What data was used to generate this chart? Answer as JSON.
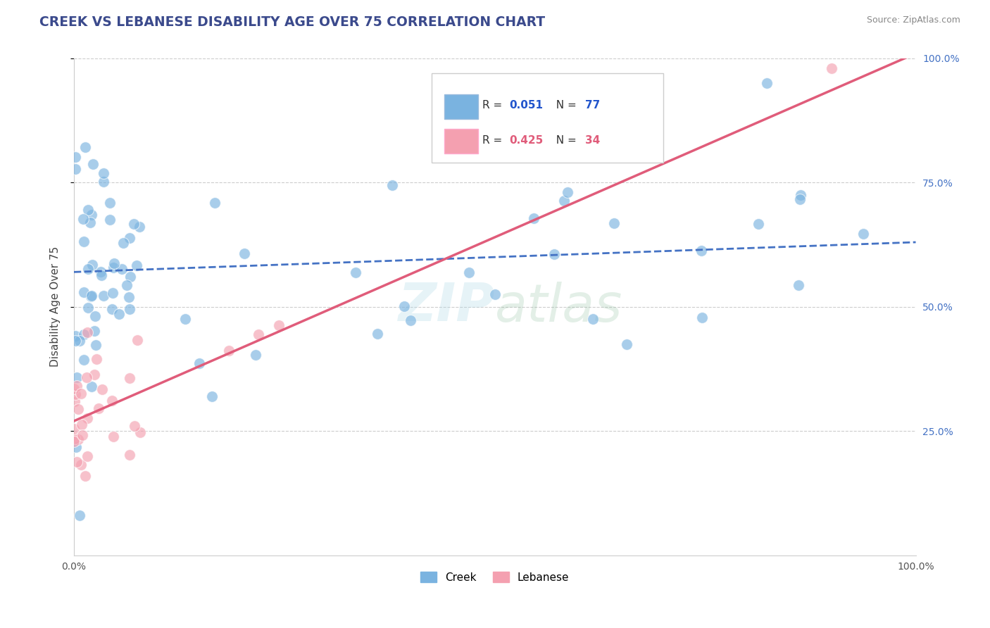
{
  "title": "CREEK VS LEBANESE DISABILITY AGE OVER 75 CORRELATION CHART",
  "source": "Source: ZipAtlas.com",
  "ylabel": "Disability Age Over 75",
  "xlim": [
    0,
    1
  ],
  "ylim": [
    0,
    1
  ],
  "ytick_labels": [
    "25.0%",
    "50.0%",
    "75.0%",
    "100.0%"
  ],
  "ytick_values": [
    0.25,
    0.5,
    0.75,
    1.0
  ],
  "title_color": "#3b4a8c",
  "source_color": "#888888",
  "watermark_zip": "ZIP",
  "watermark_atlas": "atlas",
  "creek_color": "#7ab3e0",
  "lebanese_color": "#f4a0b0",
  "creek_line_color": "#4472c4",
  "lebanese_line_color": "#e05c7a",
  "creek_R": "0.051",
  "creek_N": "77",
  "lebanese_R": "0.425",
  "lebanese_N": "34",
  "legend_val_color": "#2255cc",
  "legend_n_color": "#e05c7a",
  "grid_color": "#cccccc",
  "background_color": "#ffffff",
  "creek_line_start_y": 0.57,
  "creek_line_end_y": 0.63,
  "lebanese_line_start_y": 0.27,
  "lebanese_line_end_y": 1.01
}
